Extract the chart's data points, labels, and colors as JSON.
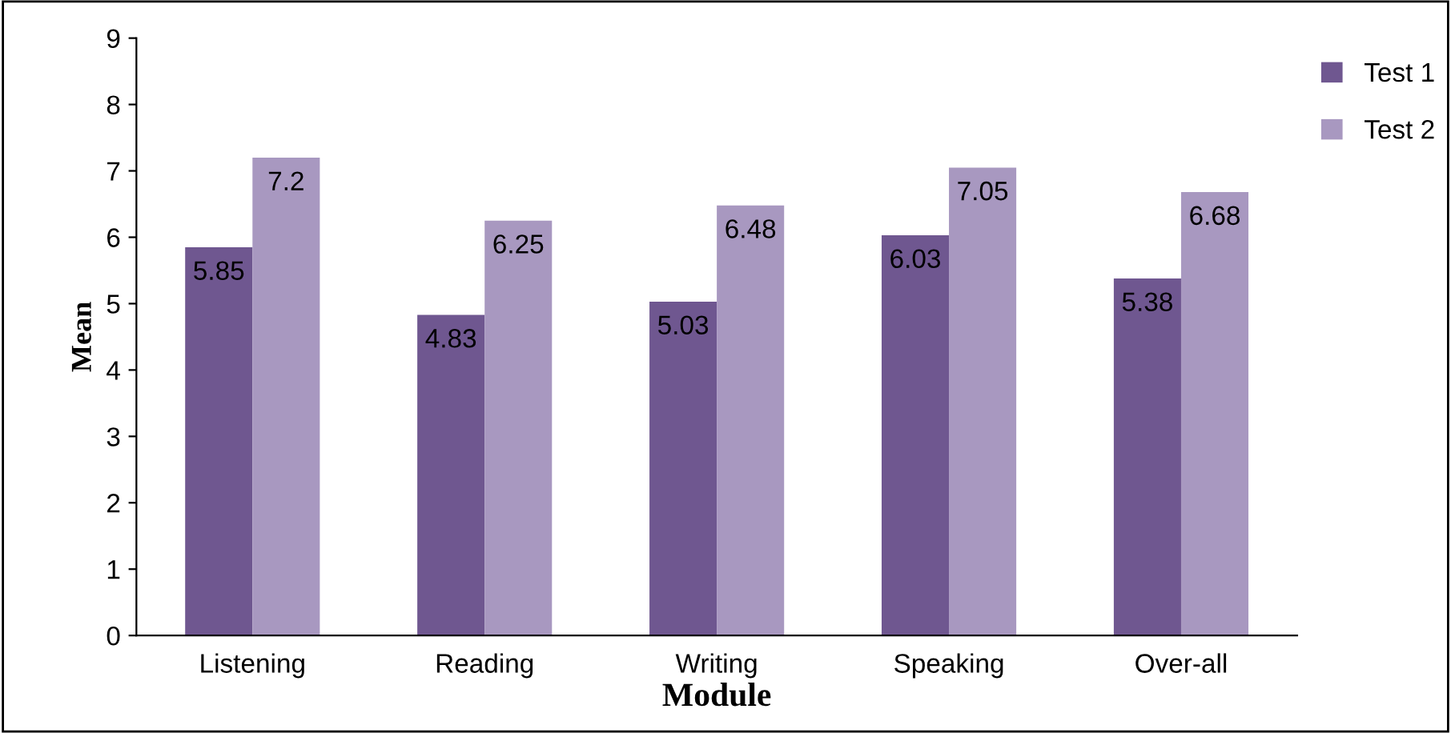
{
  "chart_data": {
    "type": "bar",
    "xlabel": "Module",
    "ylabel": "Mean",
    "categories": [
      "Listening",
      "Reading",
      "Writing",
      "Speaking",
      "Over-all"
    ],
    "series": [
      {
        "name": "Test 1",
        "color": "#6f5790",
        "values": [
          5.85,
          4.83,
          5.03,
          6.03,
          5.38
        ]
      },
      {
        "name": "Test 2",
        "color": "#a898c0",
        "values": [
          7.2,
          6.25,
          6.48,
          7.05,
          6.68
        ]
      }
    ],
    "ylim": [
      0,
      9
    ],
    "yticks": [
      0,
      1,
      2,
      3,
      4,
      5,
      6,
      7,
      8,
      9
    ],
    "grid": false,
    "legend": "top right",
    "data_labels": true
  }
}
